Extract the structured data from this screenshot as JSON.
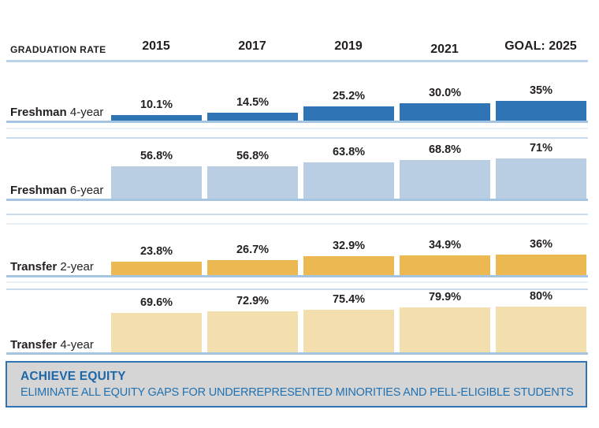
{
  "header": {
    "title": "GRADUATION RATE",
    "columns": [
      "2015",
      "2017",
      "2019",
      "2021",
      "GOAL: 2025"
    ]
  },
  "chart_data": {
    "type": "bar",
    "title": "GRADUATION RATE",
    "categories": [
      "2015",
      "2017",
      "2019",
      "2021",
      "GOAL: 2025"
    ],
    "value_suffix": "%",
    "ylim": [
      0,
      100
    ],
    "grid": false,
    "legend": false,
    "layout_hint": "four stacked single-series bar rows, value labels above bars, category years in shared header",
    "series": [
      {
        "group": "Freshman",
        "term": "4-year",
        "color": "#2F75B5",
        "values": [
          10.1,
          14.5,
          25.2,
          30.0,
          35
        ],
        "labels": [
          "10.1%",
          "14.5%",
          "25.2%",
          "30.0%",
          "35%"
        ]
      },
      {
        "group": "Freshman",
        "term": "6-year",
        "color": "#B9CEE3",
        "values": [
          56.8,
          56.8,
          63.8,
          68.8,
          71
        ],
        "labels": [
          "56.8%",
          "56.8%",
          "63.8%",
          "68.8%",
          "71%"
        ]
      },
      {
        "group": "Transfer",
        "term": "2-year",
        "color": "#ECB852",
        "values": [
          23.8,
          26.7,
          32.9,
          34.9,
          36
        ],
        "labels": [
          "23.8%",
          "26.7%",
          "32.9%",
          "34.9%",
          "36%"
        ]
      },
      {
        "group": "Transfer",
        "term": "4-year",
        "color": "#F3DEAD",
        "values": [
          69.6,
          72.9,
          75.4,
          79.9,
          80
        ],
        "labels": [
          "69.6%",
          "72.9%",
          "75.4%",
          "79.9%",
          "80%"
        ]
      }
    ]
  },
  "banner": {
    "title": "ACHIEVE EQUITY",
    "subtitle": "ELIMINATE ALL EQUITY GAPS FOR UNDERREPRESENTED MINORITIES AND PELL-ELIGIBLE STUDENTS"
  },
  "colors": {
    "dark_blue": "#2F75B5",
    "light_blue": "#B9CEE3",
    "gold": "#ECB852",
    "light_gold": "#F3DEAD",
    "rule_blue": "#A5C4E0",
    "separator_blue": "#C7DBED",
    "banner_bg": "#D5D5D5",
    "banner_border": "#2E74B5",
    "banner_text": "#1C67A9",
    "text_dark": "#231F20"
  }
}
